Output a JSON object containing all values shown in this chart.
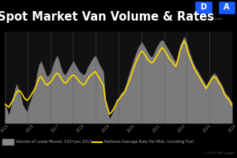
{
  "title": "Spot Market Van Volume & Rates",
  "title_fontsize": 10.5,
  "bg_color": "#000000",
  "area_color": "#888888",
  "line_color": "#FFD700",
  "legend_label_area": "Volume of Loads Moved, 100=Jan 2015",
  "legend_label_line": "National Average Rate Per Mile, Including Fuel",
  "n_points": 114,
  "volume_data": [
    55,
    52,
    48,
    53,
    58,
    63,
    66,
    62,
    59,
    54,
    52,
    50,
    54,
    57,
    61,
    65,
    72,
    77,
    79,
    76,
    73,
    70,
    71,
    73,
    77,
    80,
    82,
    79,
    75,
    72,
    71,
    73,
    75,
    77,
    79,
    77,
    75,
    73,
    72,
    71,
    72,
    75,
    77,
    79,
    81,
    82,
    80,
    77,
    75,
    73,
    57,
    52,
    46,
    48,
    51,
    54,
    57,
    59,
    61,
    62,
    65,
    69,
    73,
    76,
    80,
    83,
    86,
    88,
    90,
    88,
    86,
    84,
    82,
    81,
    83,
    86,
    88,
    90,
    91,
    90,
    88,
    86,
    84,
    82,
    80,
    78,
    83,
    88,
    90,
    93,
    91,
    87,
    83,
    80,
    77,
    75,
    73,
    71,
    69,
    67,
    65,
    67,
    69,
    71,
    72,
    71,
    69,
    67,
    65,
    62,
    60,
    59,
    57,
    55
  ],
  "rate_data": [
    44,
    43,
    42,
    44,
    46,
    49,
    51,
    52,
    51,
    49,
    47,
    46,
    47,
    49,
    51,
    53,
    56,
    59,
    60,
    58,
    56,
    55,
    56,
    57,
    59,
    61,
    62,
    61,
    59,
    57,
    56,
    57,
    59,
    60,
    61,
    60,
    59,
    57,
    56,
    55,
    56,
    58,
    60,
    61,
    62,
    63,
    61,
    59,
    57,
    55,
    46,
    42,
    38,
    39,
    41,
    43,
    46,
    47,
    49,
    50,
    52,
    55,
    58,
    61,
    65,
    68,
    71,
    73,
    75,
    74,
    72,
    70,
    69,
    68,
    69,
    71,
    73,
    75,
    77,
    76,
    74,
    72,
    70,
    69,
    67,
    66,
    70,
    75,
    78,
    81,
    79,
    74,
    71,
    68,
    65,
    63,
    61,
    59,
    57,
    55,
    53,
    55,
    57,
    59,
    60,
    59,
    57,
    55,
    53,
    50,
    48,
    47,
    45,
    43
  ],
  "year_labels": [
    "2015",
    "2016",
    "2017",
    "2018",
    "2019",
    "2020",
    "2021",
    "2022",
    "2023",
    "2024"
  ],
  "n_years": 10,
  "dat_blue": "#1a5cff",
  "copyright": "© 2023 DAT Freight"
}
